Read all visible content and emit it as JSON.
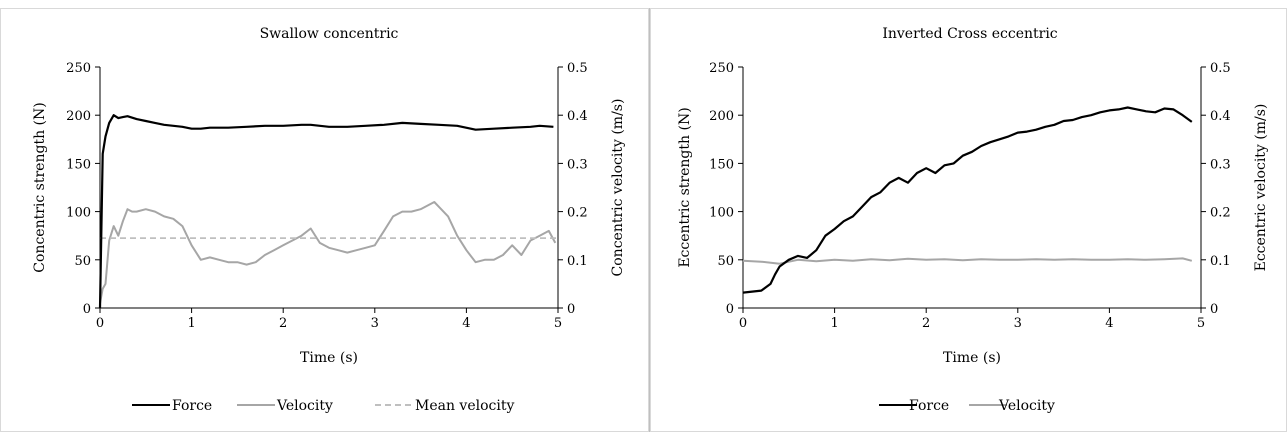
{
  "chart_data": [
    {
      "type": "line",
      "title": "Swallow concentric",
      "xlabel": "Time (s)",
      "ylabel": "Concentric strength (N)",
      "y2label": "Concentric velocity (m/s)",
      "xlim": [
        0,
        5
      ],
      "ylim": [
        0,
        250
      ],
      "y2lim": [
        0,
        0.5
      ],
      "xticks": [
        "0",
        "1",
        "2",
        "3",
        "4",
        "5"
      ],
      "yticks": [
        "0",
        "50",
        "100",
        "150",
        "200",
        "250"
      ],
      "y2ticks": [
        "0",
        "0.1",
        "0.2",
        "0.3",
        "0.4",
        "0.5"
      ],
      "grid": false,
      "legend": "bottom",
      "series": [
        {
          "name": "Force",
          "axis": "left",
          "color": "#000000",
          "style": "solid",
          "x": [
            0,
            0.03,
            0.06,
            0.1,
            0.15,
            0.2,
            0.25,
            0.3,
            0.4,
            0.5,
            0.6,
            0.7,
            0.8,
            0.9,
            1.0,
            1.1,
            1.2,
            1.4,
            1.6,
            1.8,
            2.0,
            2.2,
            2.3,
            2.5,
            2.7,
            2.9,
            3.1,
            3.3,
            3.5,
            3.7,
            3.9,
            4.1,
            4.3,
            4.5,
            4.7,
            4.8,
            4.95
          ],
          "y": [
            0,
            160,
            178,
            192,
            200,
            197,
            198,
            199,
            196,
            194,
            192,
            190,
            189,
            188,
            186,
            186,
            187,
            187,
            188,
            189,
            189,
            190,
            190,
            188,
            188,
            189,
            190,
            192,
            191,
            190,
            189,
            185,
            186,
            187,
            188,
            189,
            188
          ]
        },
        {
          "name": "Velocity",
          "axis": "right",
          "color": "#a6a6a6",
          "style": "solid",
          "x": [
            0,
            0.03,
            0.06,
            0.1,
            0.15,
            0.2,
            0.25,
            0.3,
            0.35,
            0.4,
            0.5,
            0.6,
            0.7,
            0.8,
            0.9,
            1.0,
            1.1,
            1.2,
            1.3,
            1.4,
            1.5,
            1.6,
            1.7,
            1.8,
            1.9,
            2.0,
            2.1,
            2.2,
            2.3,
            2.4,
            2.5,
            2.6,
            2.7,
            2.8,
            2.9,
            3.0,
            3.1,
            3.2,
            3.3,
            3.4,
            3.5,
            3.6,
            3.65,
            3.7,
            3.8,
            3.9,
            4.0,
            4.1,
            4.2,
            4.3,
            4.4,
            4.5,
            4.6,
            4.7,
            4.8,
            4.9,
            4.97
          ],
          "y": [
            0.01,
            0.04,
            0.05,
            0.14,
            0.17,
            0.15,
            0.18,
            0.205,
            0.2,
            0.2,
            0.205,
            0.2,
            0.19,
            0.185,
            0.17,
            0.13,
            0.1,
            0.105,
            0.1,
            0.095,
            0.095,
            0.09,
            0.095,
            0.11,
            0.12,
            0.13,
            0.14,
            0.15,
            0.165,
            0.135,
            0.125,
            0.12,
            0.115,
            0.12,
            0.125,
            0.13,
            0.16,
            0.19,
            0.2,
            0.2,
            0.205,
            0.215,
            0.22,
            0.21,
            0.19,
            0.15,
            0.12,
            0.095,
            0.1,
            0.1,
            0.11,
            0.13,
            0.11,
            0.14,
            0.15,
            0.16,
            0.135
          ]
        },
        {
          "name": "Mean velocity",
          "axis": "right",
          "color": "#bfbfbf",
          "style": "dashed",
          "x": [
            0,
            5
          ],
          "y": [
            0.145,
            0.145
          ]
        }
      ]
    },
    {
      "type": "line",
      "title": "Inverted  Cross eccentric",
      "xlabel": "Time (s)",
      "ylabel": "Eccentric strength (N)",
      "y2label": "Eccentric velocity (m/s)",
      "xlim": [
        0,
        5
      ],
      "ylim": [
        0,
        250
      ],
      "y2lim": [
        0,
        0.5
      ],
      "xticks": [
        "0",
        "1",
        "2",
        "3",
        "4",
        "5"
      ],
      "yticks": [
        "0",
        "50",
        "100",
        "150",
        "200",
        "250"
      ],
      "y2ticks": [
        "0",
        "0.1",
        "0.2",
        "0.3",
        "0.4",
        "0.5"
      ],
      "grid": false,
      "legend": "bottom",
      "series": [
        {
          "name": "Force",
          "axis": "left",
          "color": "#000000",
          "style": "solid",
          "x": [
            0,
            0.2,
            0.3,
            0.35,
            0.4,
            0.5,
            0.6,
            0.7,
            0.8,
            0.9,
            1.0,
            1.1,
            1.2,
            1.3,
            1.4,
            1.5,
            1.6,
            1.7,
            1.8,
            1.9,
            2.0,
            2.1,
            2.2,
            2.3,
            2.4,
            2.5,
            2.6,
            2.7,
            2.8,
            2.9,
            3.0,
            3.1,
            3.2,
            3.3,
            3.4,
            3.5,
            3.6,
            3.7,
            3.8,
            3.9,
            4.0,
            4.1,
            4.2,
            4.3,
            4.4,
            4.5,
            4.6,
            4.7,
            4.8,
            4.9
          ],
          "y": [
            16,
            18,
            25,
            35,
            43,
            50,
            54,
            52,
            60,
            75,
            82,
            90,
            95,
            105,
            115,
            120,
            130,
            135,
            130,
            140,
            145,
            140,
            148,
            150,
            158,
            162,
            168,
            172,
            175,
            178,
            182,
            183,
            185,
            188,
            190,
            194,
            195,
            198,
            200,
            203,
            205,
            206,
            208,
            206,
            204,
            203,
            207,
            206,
            200,
            193
          ]
        },
        {
          "name": "Velocity",
          "axis": "right",
          "color": "#a6a6a6",
          "style": "solid",
          "x": [
            0,
            0.2,
            0.4,
            0.6,
            0.8,
            1.0,
            1.2,
            1.4,
            1.6,
            1.8,
            2.0,
            2.2,
            2.4,
            2.6,
            2.8,
            3.0,
            3.2,
            3.4,
            3.6,
            3.8,
            4.0,
            4.2,
            4.4,
            4.6,
            4.8,
            4.9
          ],
          "y": [
            0.098,
            0.096,
            0.092,
            0.1,
            0.097,
            0.1,
            0.098,
            0.101,
            0.099,
            0.102,
            0.1,
            0.101,
            0.099,
            0.101,
            0.1,
            0.1,
            0.101,
            0.1,
            0.101,
            0.1,
            0.1,
            0.101,
            0.1,
            0.101,
            0.103,
            0.098
          ]
        }
      ]
    }
  ]
}
